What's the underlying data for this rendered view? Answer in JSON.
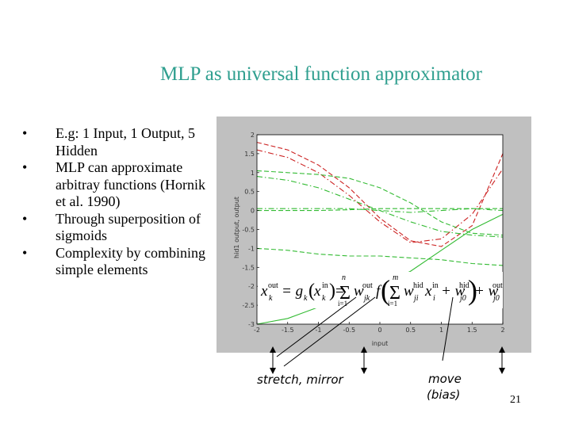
{
  "slide": {
    "title": "MLP as universal function approximator",
    "bullets": [
      "E.g: 1 Input, 1 Output, 5 Hidden",
      "MLP can approximate arbitray functions (Hornik et al. 1990)",
      "Through superposition of sigmoids",
      "Complexity by combining simple elements"
    ],
    "bullet_symbol": "•",
    "page_number": "21"
  },
  "annotations": {
    "stretch": "stretch, mirror",
    "move_line1": "move",
    "move_line2": "(bias)"
  },
  "formula": {
    "lhs": "x",
    "lhs_sub": "k",
    "lhs_sup": "out",
    "eq1": "= g",
    "g_sub": "k",
    "arg": "x",
    "arg_sub": "k",
    "arg_sup": "in",
    "eq2": "=",
    "sum1_top": "n",
    "sum1_bot": "i=1",
    "w1": "w",
    "w1_sub": "jk",
    "w1_sup": "out",
    "f": "f",
    "sum2_top": "m",
    "sum2_bot": "i=1",
    "w2": "w",
    "w2_sub": "ji",
    "w2_sup": "hid",
    "x2": "x",
    "x2_sub": "i",
    "x2_sup": "in",
    "plus1": "+ w",
    "w3_sub": "j0",
    "w3_sup": "hid",
    "plus2": "+ w",
    "w4_sub": "j0",
    "w4_sup": "out"
  },
  "chart_data": {
    "type": "line",
    "xlabel": "input",
    "ylabel": "hid1 output, output",
    "xlim": [
      -2,
      2
    ],
    "ylim": [
      -3,
      2
    ],
    "xticks": [
      "-2",
      "-1.5",
      "-1",
      "-0.5",
      "0",
      "0.5",
      "1",
      "1.5",
      "2"
    ],
    "yticks": [
      "2",
      "1.5",
      "1",
      "0.5",
      "0",
      "-0.5",
      "-1",
      "-1.5",
      "-2",
      "-2.5",
      "-3"
    ],
    "grid": false,
    "x": [
      -2,
      -1.5,
      -1,
      -0.5,
      0,
      0.5,
      1,
      1.5,
      2
    ],
    "series": [
      {
        "color": "#cc2222",
        "style": "dashed",
        "values": [
          1.8,
          1.6,
          1.2,
          0.6,
          -0.2,
          -0.8,
          -0.95,
          -0.4,
          1.5
        ]
      },
      {
        "color": "#cc2222",
        "style": "dashdot",
        "values": [
          1.6,
          1.4,
          1.0,
          0.4,
          -0.3,
          -0.85,
          -0.75,
          -0.1,
          1.1
        ]
      },
      {
        "color": "#33bb33",
        "style": "dashed",
        "values": [
          1.05,
          1.0,
          0.95,
          0.85,
          0.6,
          0.2,
          -0.3,
          -0.6,
          -0.65
        ]
      },
      {
        "color": "#33bb33",
        "style": "dashdot",
        "values": [
          0.9,
          0.8,
          0.6,
          0.3,
          0.0,
          -0.3,
          -0.55,
          -0.65,
          -0.7
        ]
      },
      {
        "color": "#33bb33",
        "style": "dashed",
        "values": [
          0.0,
          0.0,
          0.0,
          0.02,
          0.05,
          0.05,
          0.05,
          0.05,
          0.05
        ]
      },
      {
        "color": "#33bb33",
        "style": "dashdot",
        "values": [
          0.05,
          0.05,
          0.05,
          0.05,
          0.0,
          -0.05,
          0.0,
          0.05,
          0.0
        ]
      },
      {
        "color": "#33bb33",
        "style": "dashed",
        "values": [
          -1.0,
          -1.05,
          -1.15,
          -1.2,
          -1.2,
          -1.25,
          -1.3,
          -1.4,
          -1.45
        ]
      },
      {
        "color": "#33bb33",
        "style": "solid",
        "values": [
          -3.0,
          -2.85,
          -2.55,
          -2.2,
          -2.0,
          -1.6,
          -1.05,
          -0.5,
          -0.1
        ]
      }
    ]
  }
}
